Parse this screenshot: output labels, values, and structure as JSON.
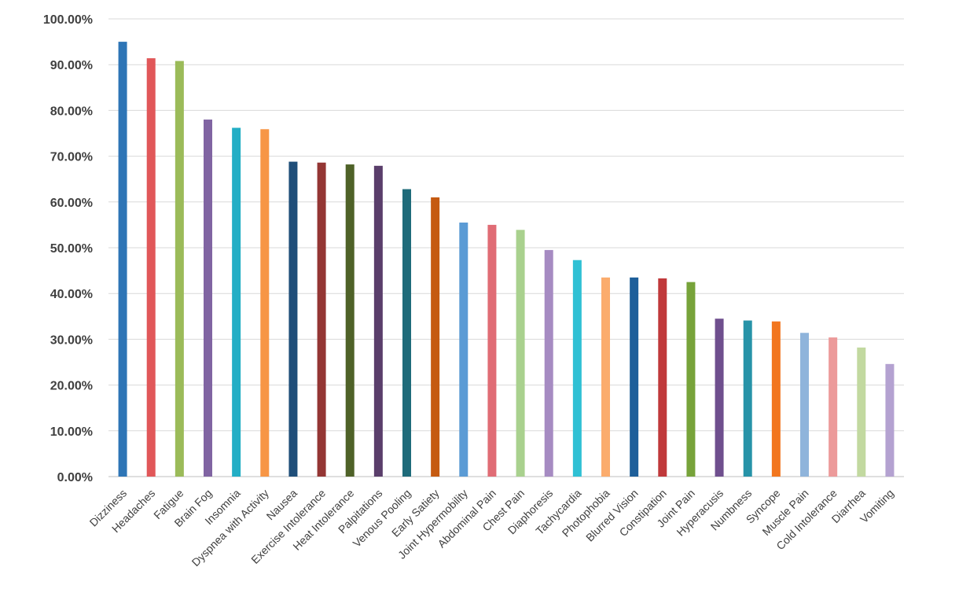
{
  "chart_data": {
    "type": "bar",
    "title": "",
    "xlabel": "",
    "ylabel": "",
    "ylim": [
      0,
      100
    ],
    "y_tick_step": 10,
    "y_tick_format": "percent_2dp",
    "grid": true,
    "legend": "none",
    "categories": [
      "Dizziness",
      "Headaches",
      "Fatigue",
      "Brain Fog",
      "Insomnia",
      "Dyspnea with Activity",
      "Nausea",
      "Exercise Intolerance",
      "Heat Intolerance",
      "Palpitations",
      "Venous Pooling",
      "Early Satiety",
      "Joint Hypermobility",
      "Abdominal Pain",
      "Chest Pain",
      "Diaphoresis",
      "Tachycardia",
      "Photophobia",
      "Blurred Vision",
      "Constipation",
      "Joint Pain",
      "Hyperacusis",
      "Numbness",
      "Syncope",
      "Muscle Pain",
      "Cold Intolerance",
      "Diarrhea",
      "Vomiting"
    ],
    "values": [
      95.0,
      91.4,
      90.8,
      78.0,
      76.2,
      75.9,
      68.8,
      68.6,
      68.2,
      67.9,
      62.8,
      61.0,
      55.5,
      55.0,
      53.9,
      49.5,
      47.3,
      43.5,
      43.5,
      43.3,
      42.5,
      34.5,
      34.1,
      33.9,
      31.4,
      30.4,
      28.2,
      24.6
    ],
    "colors": [
      "#2e75b6",
      "#e15759",
      "#9bbb59",
      "#8064a2",
      "#23aec5",
      "#f79646",
      "#1f4e79",
      "#943634",
      "#4f6228",
      "#5a3e6b",
      "#1f6b7a",
      "#c55a11",
      "#5b9bd5",
      "#e06c75",
      "#a9d18e",
      "#a68bc2",
      "#2fc0d4",
      "#fbac6d",
      "#1e5f9a",
      "#c0393b",
      "#77a33a",
      "#6f4f8e",
      "#2793a8",
      "#f2761e",
      "#8fb4db",
      "#ec9a9a",
      "#c2d9a0",
      "#b4a2d1"
    ]
  }
}
